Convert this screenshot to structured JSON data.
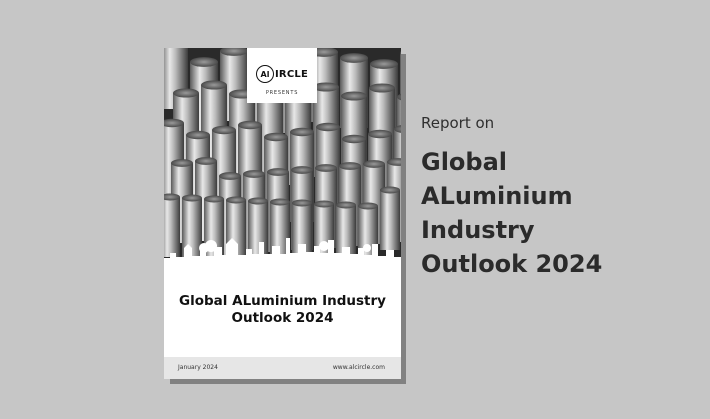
{
  "cover": {
    "logo_mark": "Al",
    "logo_word": "IRCLE",
    "presents": "PRESENTS",
    "title_lines": [
      "Global ALuminium Industry",
      "Outlook 2024"
    ],
    "footer_date": "January 2024",
    "footer_url": "www.alcircle.com",
    "image_icon": "aluminium-cylinders-skyline-illustration"
  },
  "side": {
    "label": "Report on",
    "title_lines": [
      "Global",
      "ALuminium",
      "Industry",
      "Outlook 2024"
    ]
  },
  "colors": {
    "background": "#c6c6c6",
    "cover": "#ffffff",
    "footer": "#e6e6e6",
    "text": "#2b2b2b"
  }
}
